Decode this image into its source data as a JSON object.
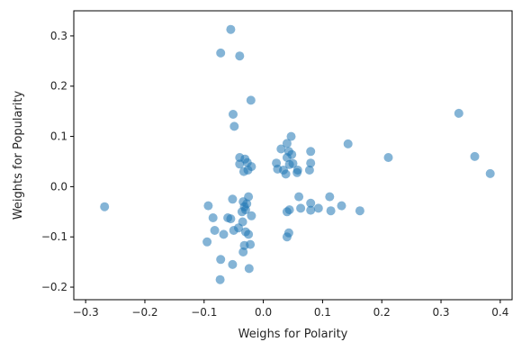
{
  "chart_data": {
    "type": "scatter",
    "xlabel": "Weighs for Polarity",
    "ylabel": "Weights for Popularity",
    "xlim": [
      -0.32,
      0.42
    ],
    "ylim": [
      -0.225,
      0.35
    ],
    "xticks": [
      -0.3,
      -0.2,
      -0.1,
      0.0,
      0.1,
      0.2,
      0.3,
      0.4
    ],
    "xtick_labels": [
      "−0.3",
      "−0.2",
      "−0.1",
      "0.0",
      "0.1",
      "0.2",
      "0.3",
      "0.4"
    ],
    "yticks": [
      -0.2,
      -0.1,
      0.0,
      0.1,
      0.2,
      0.3
    ],
    "ytick_labels": [
      "−0.2",
      "−0.1",
      "0.0",
      "0.1",
      "0.2",
      "0.3"
    ],
    "grid": false,
    "marker_color": "#1f77b4",
    "marker_alpha": 0.55,
    "points": [
      {
        "x": -0.268,
        "y": -0.04
      },
      {
        "x": -0.055,
        "y": 0.313
      },
      {
        "x": -0.072,
        "y": 0.266
      },
      {
        "x": -0.04,
        "y": 0.26
      },
      {
        "x": -0.021,
        "y": 0.172
      },
      {
        "x": -0.051,
        "y": 0.144
      },
      {
        "x": -0.049,
        "y": 0.12
      },
      {
        "x": -0.04,
        "y": 0.058
      },
      {
        "x": -0.031,
        "y": 0.055
      },
      {
        "x": -0.027,
        "y": 0.048
      },
      {
        "x": -0.04,
        "y": 0.045
      },
      {
        "x": -0.02,
        "y": 0.04
      },
      {
        "x": -0.033,
        "y": 0.03
      },
      {
        "x": -0.026,
        "y": 0.033
      },
      {
        "x": -0.052,
        "y": -0.025
      },
      {
        "x": -0.034,
        "y": -0.03
      },
      {
        "x": -0.025,
        "y": -0.02
      },
      {
        "x": -0.028,
        "y": -0.034
      },
      {
        "x": -0.032,
        "y": -0.04
      },
      {
        "x": -0.03,
        "y": -0.046
      },
      {
        "x": -0.036,
        "y": -0.05
      },
      {
        "x": -0.02,
        "y": -0.058
      },
      {
        "x": -0.06,
        "y": -0.062
      },
      {
        "x": -0.055,
        "y": -0.064
      },
      {
        "x": -0.035,
        "y": -0.07
      },
      {
        "x": -0.042,
        "y": -0.082
      },
      {
        "x": -0.05,
        "y": -0.087
      },
      {
        "x": -0.03,
        "y": -0.09
      },
      {
        "x": -0.025,
        "y": -0.095
      },
      {
        "x": -0.067,
        "y": -0.095
      },
      {
        "x": -0.022,
        "y": -0.115
      },
      {
        "x": -0.032,
        "y": -0.117
      },
      {
        "x": -0.034,
        "y": -0.13
      },
      {
        "x": -0.072,
        "y": -0.145
      },
      {
        "x": -0.052,
        "y": -0.155
      },
      {
        "x": -0.024,
        "y": -0.163
      },
      {
        "x": -0.073,
        "y": -0.185
      },
      {
        "x": -0.093,
        "y": -0.038
      },
      {
        "x": -0.085,
        "y": -0.062
      },
      {
        "x": -0.082,
        "y": -0.087
      },
      {
        "x": -0.095,
        "y": -0.11
      },
      {
        "x": 0.047,
        "y": 0.1
      },
      {
        "x": 0.04,
        "y": 0.086
      },
      {
        "x": 0.03,
        "y": 0.075
      },
      {
        "x": 0.043,
        "y": 0.07
      },
      {
        "x": 0.048,
        "y": 0.064
      },
      {
        "x": 0.04,
        "y": 0.058
      },
      {
        "x": 0.022,
        "y": 0.047
      },
      {
        "x": 0.05,
        "y": 0.046
      },
      {
        "x": 0.044,
        "y": 0.044
      },
      {
        "x": 0.08,
        "y": 0.07
      },
      {
        "x": 0.08,
        "y": 0.047
      },
      {
        "x": 0.024,
        "y": 0.035
      },
      {
        "x": 0.034,
        "y": 0.033
      },
      {
        "x": 0.038,
        "y": 0.025
      },
      {
        "x": 0.058,
        "y": 0.033
      },
      {
        "x": 0.057,
        "y": 0.028
      },
      {
        "x": 0.078,
        "y": 0.033
      },
      {
        "x": 0.143,
        "y": 0.085
      },
      {
        "x": 0.06,
        "y": -0.02
      },
      {
        "x": 0.08,
        "y": -0.033
      },
      {
        "x": 0.063,
        "y": -0.043
      },
      {
        "x": 0.08,
        "y": -0.047
      },
      {
        "x": 0.093,
        "y": -0.043
      },
      {
        "x": 0.112,
        "y": -0.02
      },
      {
        "x": 0.114,
        "y": -0.048
      },
      {
        "x": 0.132,
        "y": -0.038
      },
      {
        "x": 0.163,
        "y": -0.048
      },
      {
        "x": 0.04,
        "y": -0.05
      },
      {
        "x": 0.044,
        "y": -0.046
      },
      {
        "x": 0.043,
        "y": -0.092
      },
      {
        "x": 0.04,
        "y": -0.1
      },
      {
        "x": 0.211,
        "y": 0.058
      },
      {
        "x": 0.33,
        "y": 0.146
      },
      {
        "x": 0.357,
        "y": 0.06
      },
      {
        "x": 0.383,
        "y": 0.026
      }
    ]
  }
}
